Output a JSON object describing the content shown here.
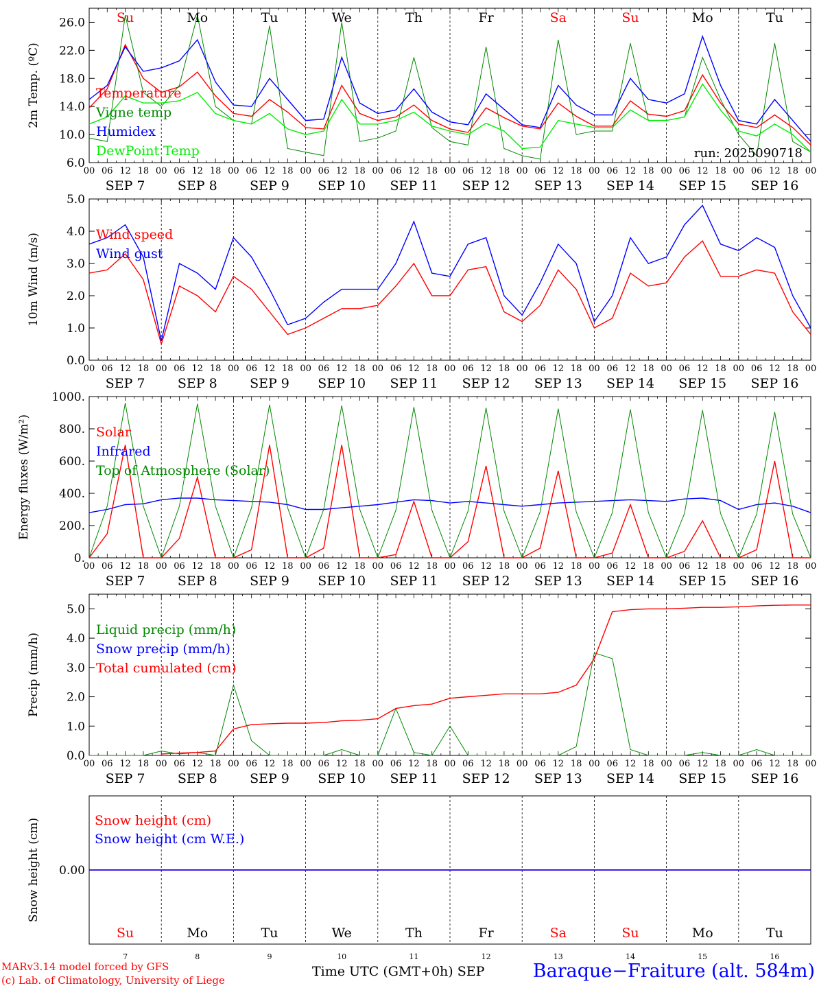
{
  "footer": {
    "model_credit": "MARv3.14 model forced by GFS",
    "lab_credit": "(c) Lab. of Climatology, University of Liege",
    "time_label": "Time UTC (GMT+0h)",
    "month_label": "SEP",
    "station": "Baraque−Fraiture (alt. 584m)"
  },
  "colors": {
    "red": "#ff0000",
    "green": "#008800",
    "blue": "#0000ff",
    "lightgreen": "#00ee00",
    "black": "#000000"
  },
  "chart_data": [
    {
      "type": "line",
      "ylabel": "2m Temp. (ºC)",
      "ylim": [
        6,
        28
      ],
      "yticks": [
        6.0,
        10.0,
        14.0,
        18.0,
        22.0,
        26.0
      ],
      "ytick_labels": [
        "6.0",
        "10.0",
        "14.0",
        "18.0",
        "22.0",
        "26.0"
      ],
      "annotation": "run: 2025090718",
      "weekdays": [
        "Su",
        "Mo",
        "Tu",
        "We",
        "Th",
        "Fr",
        "Sa",
        "Su",
        "Mo",
        "Tu"
      ],
      "weekday_colors": [
        "#ff0000",
        "#000000",
        "#000000",
        "#000000",
        "#000000",
        "#000000",
        "#ff0000",
        "#ff0000",
        "#000000",
        "#000000"
      ],
      "x": [
        "2025-09-07T00",
        "2025-09-07T06",
        "2025-09-07T12",
        "2025-09-07T18",
        "2025-09-08T00",
        "2025-09-08T06",
        "2025-09-08T12",
        "2025-09-08T18",
        "2025-09-09T00",
        "2025-09-09T06",
        "2025-09-09T12",
        "2025-09-09T18",
        "2025-09-10T00",
        "2025-09-10T06",
        "2025-09-10T12",
        "2025-09-10T18",
        "2025-09-11T00",
        "2025-09-11T06",
        "2025-09-11T12",
        "2025-09-11T18",
        "2025-09-12T00",
        "2025-09-12T06",
        "2025-09-12T12",
        "2025-09-12T18",
        "2025-09-13T00",
        "2025-09-13T06",
        "2025-09-13T12",
        "2025-09-13T18",
        "2025-09-14T00",
        "2025-09-14T06",
        "2025-09-14T12",
        "2025-09-14T18",
        "2025-09-15T00",
        "2025-09-15T06",
        "2025-09-15T12",
        "2025-09-15T18",
        "2025-09-16T00",
        "2025-09-16T06",
        "2025-09-16T12",
        "2025-09-16T18",
        "2025-09-17T00"
      ],
      "series": [
        {
          "name": "Temperature",
          "color": "#ff0000",
          "values": [
            13.8,
            16.5,
            22.8,
            18.0,
            16.0,
            16.8,
            18.9,
            15.5,
            13.0,
            12.6,
            15.0,
            13.2,
            11.0,
            10.8,
            17.0,
            13.0,
            12.0,
            12.5,
            14.2,
            12.0,
            10.8,
            10.3,
            13.8,
            12.4,
            11.2,
            10.8,
            14.5,
            12.6,
            11.2,
            11.2,
            14.8,
            12.9,
            12.6,
            13.4,
            18.5,
            14.5,
            11.5,
            11.0,
            12.8,
            11.0,
            8.5
          ]
        },
        {
          "name": "Vigne temp",
          "color": "#008800",
          "values": [
            9.5,
            9.0,
            27.0,
            16.0,
            14.0,
            17.0,
            27.0,
            14.0,
            12.0,
            11.5,
            25.5,
            8.0,
            7.5,
            7.0,
            26.0,
            9.0,
            9.5,
            10.5,
            21.0,
            11.0,
            9.0,
            8.5,
            22.5,
            8.0,
            7.0,
            6.5,
            23.5,
            10.0,
            10.5,
            10.5,
            23.0,
            12.0,
            12.0,
            12.5,
            21.0,
            15.0,
            10.0,
            7.0,
            23.0,
            9.0,
            7.5
          ]
        },
        {
          "name": "Humidex",
          "color": "#0000ff",
          "values": [
            15.0,
            17.0,
            22.5,
            19.0,
            19.5,
            20.5,
            23.5,
            17.5,
            14.2,
            14.0,
            18.0,
            15.0,
            12.0,
            12.2,
            21.0,
            14.5,
            13.0,
            13.5,
            16.5,
            13.2,
            11.8,
            11.4,
            15.8,
            13.6,
            11.4,
            11.0,
            17.0,
            14.2,
            12.8,
            12.8,
            18.0,
            15.0,
            14.5,
            15.8,
            24.0,
            17.0,
            12.0,
            11.5,
            15.0,
            12.0,
            9.0
          ]
        },
        {
          "name": "DewPoint Temp",
          "color": "#00ee00",
          "values": [
            11.5,
            12.5,
            15.5,
            14.5,
            14.5,
            14.8,
            16.0,
            13.0,
            12.0,
            11.5,
            13.0,
            10.8,
            10.0,
            10.5,
            15.0,
            11.5,
            11.5,
            12.0,
            13.2,
            11.2,
            10.5,
            10.0,
            11.6,
            10.5,
            8.0,
            8.2,
            12.0,
            11.5,
            11.0,
            11.0,
            13.5,
            12.0,
            12.0,
            12.5,
            17.2,
            13.5,
            10.5,
            9.8,
            11.5,
            10.0,
            7.5
          ]
        }
      ]
    },
    {
      "type": "line",
      "ylabel": "10m Wind (m/s)",
      "ylim": [
        0,
        5
      ],
      "yticks": [
        0,
        1,
        2,
        3,
        4,
        5
      ],
      "ytick_labels": [
        "0.0",
        "1.0",
        "2.0",
        "3.0",
        "4.0",
        "5.0"
      ],
      "x": [
        "2025-09-07T00",
        "2025-09-07T06",
        "2025-09-07T12",
        "2025-09-07T18",
        "2025-09-08T00",
        "2025-09-08T06",
        "2025-09-08T12",
        "2025-09-08T18",
        "2025-09-09T00",
        "2025-09-09T06",
        "2025-09-09T12",
        "2025-09-09T18",
        "2025-09-10T00",
        "2025-09-10T06",
        "2025-09-10T12",
        "2025-09-10T18",
        "2025-09-11T00",
        "2025-09-11T06",
        "2025-09-11T12",
        "2025-09-11T18",
        "2025-09-12T00",
        "2025-09-12T06",
        "2025-09-12T12",
        "2025-09-12T18",
        "2025-09-13T00",
        "2025-09-13T06",
        "2025-09-13T12",
        "2025-09-13T18",
        "2025-09-14T00",
        "2025-09-14T06",
        "2025-09-14T12",
        "2025-09-14T18",
        "2025-09-15T00",
        "2025-09-15T06",
        "2025-09-15T12",
        "2025-09-15T18",
        "2025-09-16T00",
        "2025-09-16T06",
        "2025-09-16T12",
        "2025-09-16T18",
        "2025-09-17T00"
      ],
      "series": [
        {
          "name": "Wind speed",
          "color": "#ff0000",
          "values": [
            2.7,
            2.8,
            3.3,
            2.5,
            0.5,
            2.3,
            2.0,
            1.5,
            2.6,
            2.2,
            1.5,
            0.8,
            1.0,
            1.3,
            1.6,
            1.6,
            1.7,
            2.3,
            3.0,
            2.0,
            2.0,
            2.8,
            2.9,
            1.5,
            1.2,
            1.7,
            2.8,
            2.2,
            1.0,
            1.3,
            2.7,
            2.3,
            2.4,
            3.2,
            3.7,
            2.6,
            2.6,
            2.8,
            2.7,
            1.5,
            0.8
          ]
        },
        {
          "name": "Wind gust",
          "color": "#0000ff",
          "values": [
            3.6,
            3.8,
            4.2,
            3.2,
            0.6,
            3.0,
            2.7,
            2.2,
            3.8,
            3.2,
            2.2,
            1.1,
            1.3,
            1.8,
            2.2,
            2.2,
            2.2,
            3.0,
            4.3,
            2.7,
            2.6,
            3.6,
            3.8,
            2.0,
            1.4,
            2.4,
            3.6,
            3.0,
            1.2,
            2.0,
            3.8,
            3.0,
            3.2,
            4.2,
            4.8,
            3.6,
            3.4,
            3.8,
            3.5,
            2.0,
            1.0
          ]
        }
      ]
    },
    {
      "type": "line",
      "ylabel": "Energy fluxes (W/m²)",
      "ylim": [
        0,
        1000
      ],
      "yticks": [
        0,
        200,
        400,
        600,
        800,
        1000
      ],
      "ytick_labels": [
        "0.",
        "200.",
        "400.",
        "600.",
        "800.",
        "1000."
      ],
      "x": [
        "2025-09-07T00",
        "2025-09-07T06",
        "2025-09-07T12",
        "2025-09-07T18",
        "2025-09-08T00",
        "2025-09-08T06",
        "2025-09-08T12",
        "2025-09-08T18",
        "2025-09-09T00",
        "2025-09-09T06",
        "2025-09-09T12",
        "2025-09-09T18",
        "2025-09-10T00",
        "2025-09-10T06",
        "2025-09-10T12",
        "2025-09-10T18",
        "2025-09-11T00",
        "2025-09-11T06",
        "2025-09-11T12",
        "2025-09-11T18",
        "2025-09-12T00",
        "2025-09-12T06",
        "2025-09-12T12",
        "2025-09-12T18",
        "2025-09-13T00",
        "2025-09-13T06",
        "2025-09-13T12",
        "2025-09-13T18",
        "2025-09-14T00",
        "2025-09-14T06",
        "2025-09-14T12",
        "2025-09-14T18",
        "2025-09-15T00",
        "2025-09-15T06",
        "2025-09-15T12",
        "2025-09-15T18",
        "2025-09-16T00",
        "2025-09-16T06",
        "2025-09-16T12",
        "2025-09-16T18",
        "2025-09-17T00"
      ],
      "series": [
        {
          "name": "Solar",
          "color": "#ff0000",
          "values": [
            0,
            150,
            700,
            0,
            0,
            120,
            500,
            0,
            0,
            50,
            700,
            0,
            0,
            60,
            700,
            0,
            0,
            20,
            350,
            0,
            0,
            100,
            570,
            0,
            0,
            60,
            540,
            0,
            0,
            30,
            330,
            0,
            0,
            40,
            230,
            0,
            0,
            50,
            600,
            0,
            0
          ]
        },
        {
          "name": "Infrared",
          "color": "#0000ff",
          "values": [
            280,
            300,
            330,
            335,
            360,
            370,
            370,
            360,
            355,
            350,
            345,
            330,
            300,
            300,
            310,
            320,
            330,
            345,
            360,
            355,
            340,
            350,
            340,
            330,
            320,
            330,
            340,
            345,
            350,
            355,
            360,
            355,
            350,
            365,
            370,
            355,
            300,
            330,
            340,
            320,
            280
          ]
        },
        {
          "name": "Top of Atmosphere (Solar)",
          "color": "#008800",
          "values": [
            0,
            320,
            960,
            320,
            0,
            320,
            955,
            320,
            0,
            310,
            950,
            310,
            0,
            300,
            945,
            300,
            0,
            295,
            935,
            295,
            0,
            290,
            930,
            290,
            0,
            285,
            925,
            285,
            0,
            280,
            920,
            280,
            0,
            275,
            915,
            275,
            0,
            270,
            905,
            270,
            0
          ]
        }
      ]
    },
    {
      "type": "line",
      "ylabel": "Precip (mm/h)",
      "ylim": [
        0,
        5.5
      ],
      "yticks": [
        0,
        1,
        2,
        3,
        4,
        5
      ],
      "ytick_labels": [
        "0.0",
        "1.0",
        "2.0",
        "3.0",
        "4.0",
        "5.0"
      ],
      "x": [
        "2025-09-07T00",
        "2025-09-07T06",
        "2025-09-07T12",
        "2025-09-07T18",
        "2025-09-08T00",
        "2025-09-08T06",
        "2025-09-08T12",
        "2025-09-08T18",
        "2025-09-09T00",
        "2025-09-09T06",
        "2025-09-09T12",
        "2025-09-09T18",
        "2025-09-10T00",
        "2025-09-10T06",
        "2025-09-10T12",
        "2025-09-10T18",
        "2025-09-11T00",
        "2025-09-11T06",
        "2025-09-11T12",
        "2025-09-11T18",
        "2025-09-12T00",
        "2025-09-12T06",
        "2025-09-12T12",
        "2025-09-12T18",
        "2025-09-13T00",
        "2025-09-13T06",
        "2025-09-13T12",
        "2025-09-13T18",
        "2025-09-14T00",
        "2025-09-14T06",
        "2025-09-14T12",
        "2025-09-14T18",
        "2025-09-15T00",
        "2025-09-15T06",
        "2025-09-15T12",
        "2025-09-15T18",
        "2025-09-16T00",
        "2025-09-16T06",
        "2025-09-16T12",
        "2025-09-16T18",
        "2025-09-17T00"
      ],
      "series": [
        {
          "name": "Liquid precip (mm/h)",
          "color": "#008800",
          "values": [
            0,
            0,
            0,
            0,
            0.15,
            0.05,
            0.1,
            0,
            2.4,
            0.5,
            0,
            0,
            0,
            0,
            0.2,
            0,
            0,
            1.6,
            0.1,
            0,
            1.0,
            0,
            0,
            0,
            0,
            0,
            0,
            0.3,
            3.5,
            3.3,
            0.2,
            0,
            0,
            0,
            0.1,
            0,
            0,
            0.2,
            0,
            0,
            0
          ]
        },
        {
          "name": "Snow precip (mm/h)",
          "color": "#0000ff",
          "values": [
            0,
            0,
            0,
            0,
            0,
            0,
            0,
            0,
            0,
            0,
            0,
            0,
            0,
            0,
            0,
            0,
            0,
            0,
            0,
            0,
            0,
            0,
            0,
            0,
            0,
            0,
            0,
            0,
            0,
            0,
            0,
            0,
            0,
            0,
            0,
            0,
            0,
            0,
            0,
            0,
            0
          ]
        },
        {
          "name": "Total cumulated (cm)",
          "color": "#ff0000",
          "values": [
            null,
            null,
            null,
            null,
            0.05,
            0.08,
            0.1,
            0.15,
            0.9,
            1.05,
            1.08,
            1.1,
            1.1,
            1.12,
            1.18,
            1.2,
            1.25,
            1.6,
            1.7,
            1.75,
            1.95,
            2.0,
            2.05,
            2.1,
            2.1,
            2.1,
            2.15,
            2.4,
            3.3,
            4.9,
            4.97,
            5.0,
            5.0,
            5.02,
            5.05,
            5.05,
            5.07,
            5.1,
            5.12,
            5.13,
            5.13
          ]
        }
      ]
    },
    {
      "type": "line",
      "ylabel": "Snow height (cm)",
      "ylim": [
        -1,
        1
      ],
      "yticks": [
        0
      ],
      "ytick_labels": [
        "0.00"
      ],
      "day_numbers": [
        "7",
        "8",
        "9",
        "10",
        "11",
        "12",
        "13",
        "14",
        "15",
        "16"
      ],
      "x": [
        "2025-09-07T00",
        "2025-09-17T00"
      ],
      "series": [
        {
          "name": "Snow height (cm)",
          "color": "#ff0000",
          "values": [
            0,
            0
          ]
        },
        {
          "name": "Snow height (cm W.E.)",
          "color": "#0000ff",
          "values": [
            0,
            0
          ]
        }
      ]
    }
  ],
  "date_labels": [
    "SEP  7",
    "SEP  8",
    "SEP  9",
    "SEP 10",
    "SEP 11",
    "SEP 12",
    "SEP 13",
    "SEP 14",
    "SEP 15",
    "SEP 16"
  ],
  "hour_labels": [
    "00",
    "06",
    "12",
    "18"
  ]
}
